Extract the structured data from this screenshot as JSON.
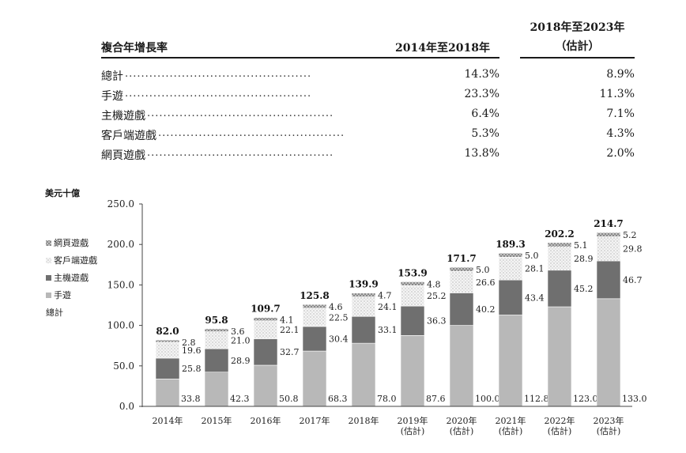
{
  "table": {
    "title": "複合年增長率",
    "col1": "2014年至2018年",
    "col2_line1": "2018年至2023年",
    "col2_line2": "（估計）",
    "rows": [
      {
        "label": "總計",
        "v1": "14.3%",
        "v2": "8.9%"
      },
      {
        "label": "手遊",
        "v1": "23.3%",
        "v2": "11.3%"
      },
      {
        "label": "主機遊戲",
        "v1": "6.4%",
        "v2": "7.1%"
      },
      {
        "label": "客戶端遊戲",
        "v1": "5.3%",
        "v2": "4.3%"
      },
      {
        "label": "網頁遊戲",
        "v1": "13.8%",
        "v2": "2.0%"
      }
    ]
  },
  "colors": {
    "mobile": "#b8b8b8",
    "console": "#6f6f6f",
    "client": "#f4f4f4",
    "web": "#7a7a7a"
  },
  "chart_data": {
    "type": "bar",
    "stacked": true,
    "unit_label": "美元十億",
    "categories": [
      "2014年",
      "2015年",
      "2016年",
      "2017年",
      "2018年",
      "2019年\n(估計)",
      "2020年\n(估計)",
      "2021年\n(估計)",
      "2022年\n(估計)",
      "2023年\n(估計)"
    ],
    "series": [
      {
        "name": "手遊",
        "values": [
          33.8,
          42.3,
          50.8,
          68.3,
          78.0,
          87.6,
          100.0,
          112.8,
          123.0,
          133.0
        ]
      },
      {
        "name": "主機遊戲",
        "values": [
          25.8,
          28.9,
          32.7,
          30.4,
          33.1,
          36.3,
          40.2,
          43.4,
          45.2,
          46.7
        ]
      },
      {
        "name": "客戶端遊戲",
        "values": [
          19.6,
          21.0,
          22.1,
          22.5,
          24.1,
          25.2,
          26.6,
          28.1,
          28.9,
          29.8
        ]
      },
      {
        "name": "網頁遊戲",
        "values": [
          2.8,
          3.6,
          4.1,
          4.6,
          4.7,
          4.8,
          5.0,
          5.0,
          5.1,
          5.2
        ]
      }
    ],
    "totals": [
      82.0,
      95.8,
      109.7,
      125.8,
      139.9,
      153.9,
      171.7,
      189.3,
      202.2,
      214.7
    ],
    "total_label": "總計",
    "ylim": [
      0,
      250
    ],
    "yticks": [
      "0.0",
      "50.0",
      "100.0",
      "150.0",
      "200.0",
      "250.0"
    ],
    "legend": [
      "網頁遊戲",
      "客戶端遊戲",
      "主機遊戲",
      "手遊",
      "總計"
    ],
    "legend_position": "left"
  }
}
